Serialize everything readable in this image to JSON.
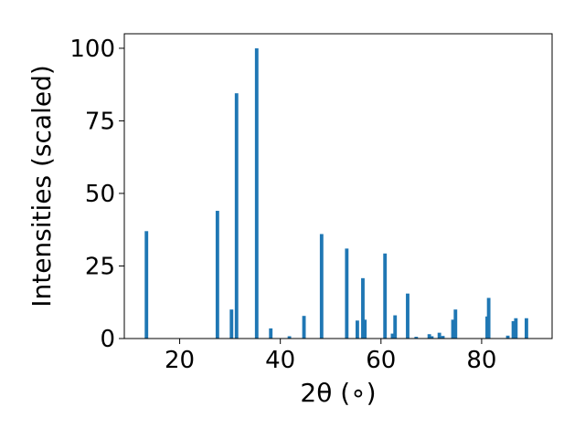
{
  "chart_data": {
    "type": "bar",
    "title": "",
    "xlabel": "2θ (∘)",
    "ylabel": "Intensities (scaled)",
    "xlim": [
      9,
      94
    ],
    "ylim": [
      0,
      105
    ],
    "xticks": [
      20,
      40,
      60,
      80
    ],
    "yticks": [
      0,
      25,
      50,
      75,
      100
    ],
    "grid": false,
    "bar_width": 0.7,
    "bar_color": "#1f77b4",
    "x": [
      13.4,
      27.5,
      30.3,
      31.3,
      35.3,
      38.1,
      41.8,
      44.7,
      48.2,
      53.2,
      55.3,
      56.4,
      56.8,
      60.8,
      62.3,
      62.8,
      65.3,
      67.0,
      69.6,
      70.1,
      71.6,
      72.3,
      74.3,
      74.8,
      81.1,
      81.4,
      85.2,
      86.3,
      86.8,
      88.9
    ],
    "values": [
      37.0,
      44.0,
      10.0,
      84.5,
      100.0,
      3.5,
      0.8,
      7.8,
      36.0,
      31.0,
      6.2,
      20.8,
      6.5,
      29.3,
      1.7,
      8.0,
      15.5,
      0.6,
      1.5,
      0.8,
      2.0,
      0.9,
      6.5,
      10.0,
      7.6,
      14.0,
      1.0,
      6.0,
      7.0,
      7.0
    ]
  }
}
